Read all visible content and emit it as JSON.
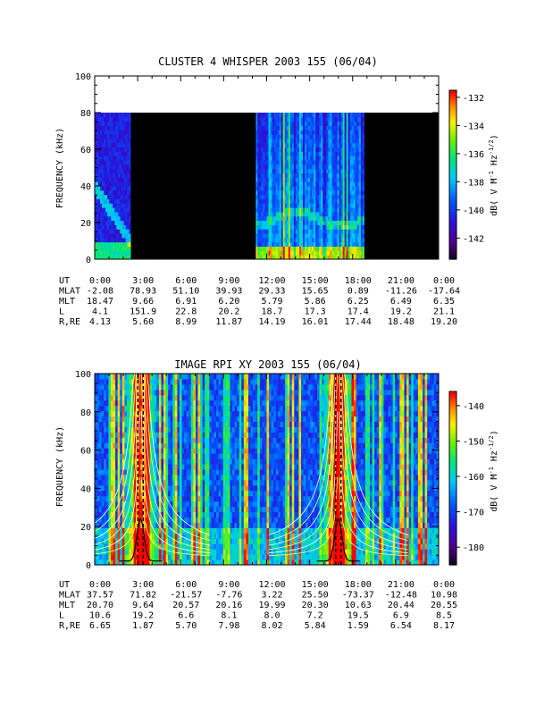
{
  "chart_data": [
    {
      "type": "heatmap",
      "title": "CLUSTER 4 WHISPER 2003 155 (06/04)",
      "ylabel": "FREQUENCY (kHz)",
      "xlabel": "",
      "ylim": [
        0,
        100
      ],
      "yticks": [
        "0",
        "20",
        "40",
        "60",
        "80",
        "100"
      ],
      "data_ylim": [
        0,
        80
      ],
      "x_range_hours": [
        0,
        24
      ],
      "colorbar": {
        "label": "dB( V M⁻¹ Hz⁻¹ᐟ²)",
        "label_main": "dB( V M",
        "label_exp1": "-1",
        "label_mid": " Hz",
        "label_exp2": "-1/2",
        "label_end": ")",
        "range": [
          -143.5,
          -131.5
        ],
        "ticks": [
          "-132",
          "-134",
          "-136",
          "-138",
          "-140",
          "-142"
        ],
        "tick_values": [
          -132,
          -134,
          -136,
          -138,
          -140,
          -142
        ]
      },
      "data_gaps_hours": [
        [
          2.5,
          11.2
        ],
        [
          18.8,
          24
        ]
      ],
      "ephemeris": {
        "row_labels": [
          "UT",
          "MLAT",
          "MLT",
          "L",
          "R,RE"
        ],
        "columns": [
          [
            "0:00",
            "-2.08",
            "18.47",
            "4.1",
            "4.13"
          ],
          [
            "3:00",
            "78.93",
            "9.66",
            "151.9",
            "5.60"
          ],
          [
            "6:00",
            "51.10",
            "6.91",
            "22.8",
            "8.99"
          ],
          [
            "9:00",
            "39.93",
            "6.20",
            "20.2",
            "11.87"
          ],
          [
            "12:00",
            "29.33",
            "5.79",
            "18.7",
            "14.19"
          ],
          [
            "15:00",
            "15.65",
            "5.86",
            "17.3",
            "16.01"
          ],
          [
            "18:00",
            "0.89",
            "6.25",
            "17.4",
            "17.44"
          ],
          [
            "21:00",
            "-11.26",
            "6.49",
            "19.2",
            "18.48"
          ],
          [
            "0:00",
            "-17.64",
            "6.35",
            "21.1",
            "19.20"
          ]
        ]
      }
    },
    {
      "type": "heatmap",
      "title": "IMAGE RPI XY 2003 155 (06/04)",
      "ylabel": "FREQUENCY (kHz)",
      "xlabel": "",
      "ylim": [
        0,
        100
      ],
      "yticks": [
        "0",
        "20",
        "40",
        "60",
        "80",
        "100"
      ],
      "x_range_hours": [
        0,
        24
      ],
      "colorbar": {
        "label_main": "dB( V M",
        "label_exp1": "-1",
        "label_mid": " Hz",
        "label_exp2": "-1/2",
        "label_end": ")",
        "range": [
          -185,
          -136
        ],
        "ticks": [
          "-140",
          "-150",
          "-160",
          "-170",
          "-180"
        ],
        "tick_values": [
          -140,
          -150,
          -160,
          -170,
          -180
        ]
      },
      "ephemeris": {
        "row_labels": [
          "UT",
          "MLAT",
          "MLT",
          "L",
          "R,RE"
        ],
        "columns": [
          [
            "0:00",
            "37.57",
            "20.70",
            "10.6",
            "6.65"
          ],
          [
            "3:00",
            "71.82",
            "9.64",
            "19.2",
            "1.87"
          ],
          [
            "6:00",
            "-21.57",
            "20.57",
            "6.6",
            "5.70"
          ],
          [
            "9:00",
            "-7.76",
            "20.16",
            "8.1",
            "7.98"
          ],
          [
            "12:00",
            "3.22",
            "19.99",
            "8.0",
            "8.02"
          ],
          [
            "15:00",
            "25.50",
            "20.30",
            "7.2",
            "5.84"
          ],
          [
            "18:00",
            "-73.37",
            "10.63",
            "19.5",
            "1.59"
          ],
          [
            "21:00",
            "-12.48",
            "20.44",
            "6.9",
            "6.54"
          ],
          [
            "0:00",
            "10.98",
            "20.55",
            "8.5",
            "8.17"
          ]
        ]
      },
      "perigee_hours": [
        3.2,
        17.0
      ]
    }
  ]
}
